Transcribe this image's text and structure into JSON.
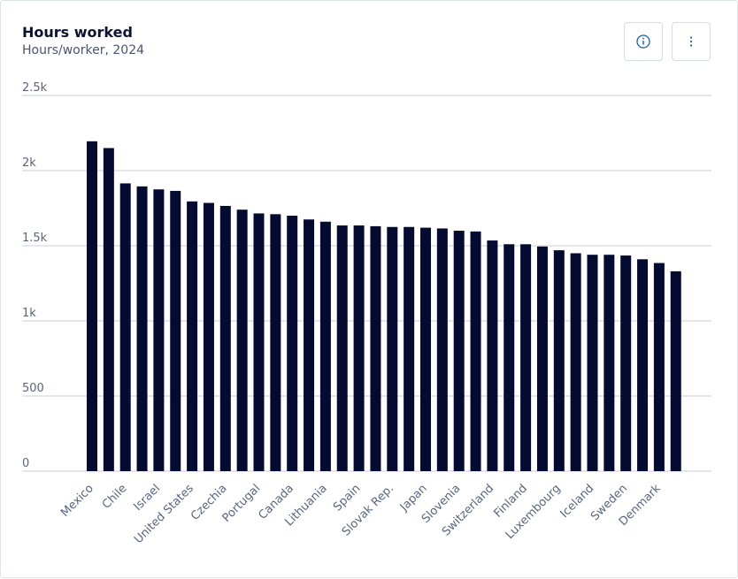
{
  "header": {
    "title": "Hours worked",
    "subtitle": "Hours/worker, 2024"
  },
  "buttons": {
    "info_icon": "info-circle-icon",
    "more_icon": "vertical-ellipsis-icon"
  },
  "colors": {
    "bar": "#050a30",
    "grid": "#c9ced8",
    "accent": "#1f5fa8"
  },
  "chart_data": {
    "type": "bar",
    "title": "Hours worked",
    "subtitle": "Hours/worker, 2024",
    "ylim": [
      0,
      2500
    ],
    "yticks": [
      0,
      500,
      1000,
      1500,
      2000,
      2500
    ],
    "ytick_labels": [
      "0",
      "500",
      "1k",
      "1.5k",
      "2k",
      "2.5k"
    ],
    "grid": true,
    "categories": [
      "Mexico",
      "",
      "Chile",
      "",
      "Israel",
      "",
      "United States",
      "",
      "Czechia",
      "",
      "Portugal",
      "",
      "Canada",
      "",
      "Lithuania",
      "",
      "Spain",
      "",
      "Slovak Rep.",
      "",
      "Japan",
      "",
      "Slovenia",
      "",
      "Switzerland",
      "",
      "Finland",
      "",
      "Luxembourg",
      "",
      "Iceland",
      "",
      "Sweden",
      "",
      "Denmark",
      ""
    ],
    "values": [
      2195,
      2150,
      1915,
      1895,
      1875,
      1865,
      1795,
      1785,
      1765,
      1740,
      1715,
      1710,
      1700,
      1675,
      1660,
      1635,
      1635,
      1630,
      1625,
      1625,
      1620,
      1615,
      1600,
      1595,
      1535,
      1510,
      1510,
      1495,
      1470,
      1450,
      1440,
      1440,
      1435,
      1410,
      1385,
      1330
    ]
  }
}
